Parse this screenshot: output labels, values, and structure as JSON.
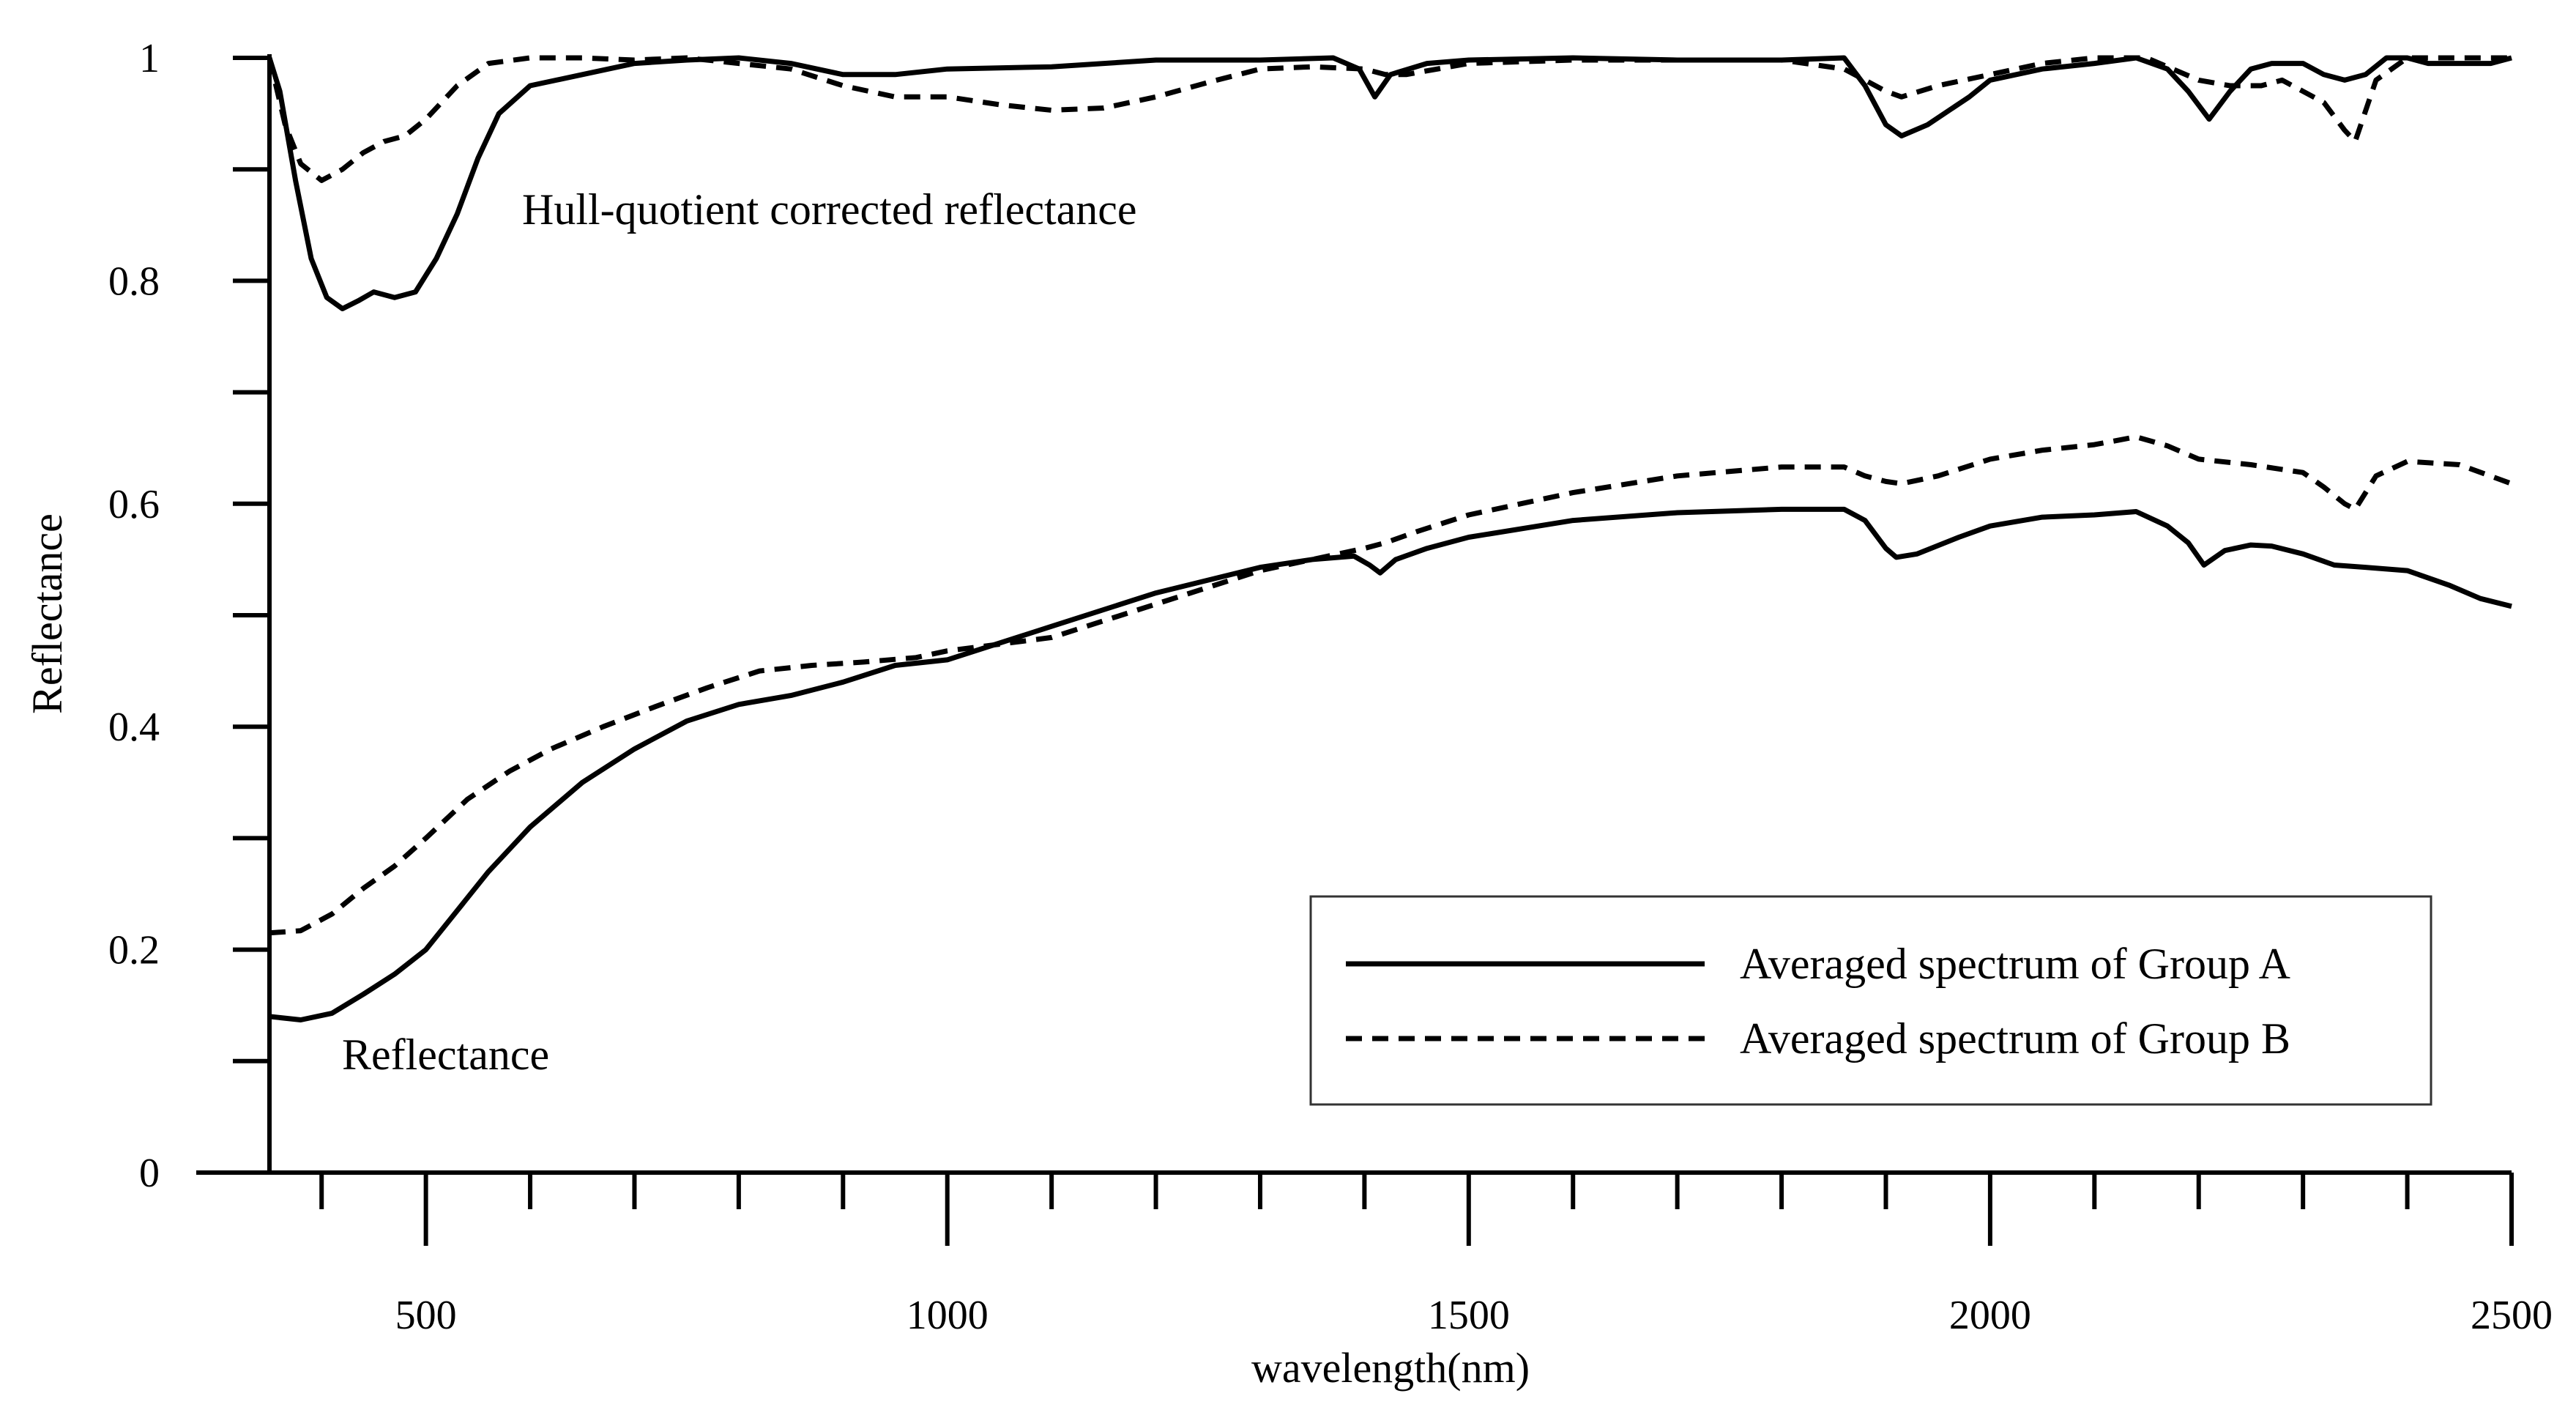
{
  "chart_data": {
    "type": "line",
    "title": "",
    "xlabel": "wavelength(nm)",
    "ylabel": "Reflectance",
    "xlim": [
      350,
      2500
    ],
    "ylim": [
      0,
      1
    ],
    "x_tick_labels": [
      "500",
      "1000",
      "1500",
      "2000",
      "2500"
    ],
    "y_tick_labels": [
      "0",
      "0.2",
      "0.4",
      "0.6",
      "0.8",
      "1"
    ],
    "x_major_ticks": [
      500,
      1000,
      1500,
      2000,
      2500
    ],
    "x_minor_ticks": [
      400,
      600,
      700,
      800,
      900,
      1100,
      1200,
      1300,
      1400,
      1600,
      1700,
      1800,
      1900,
      2100,
      2200,
      2300,
      2400
    ],
    "y_ticks": [
      0,
      0.1,
      0.2,
      0.3,
      0.4,
      0.5,
      0.6,
      0.7,
      0.8,
      0.9,
      1.0
    ],
    "annotations": [
      {
        "text": "Hull-quotient corrected reflectance",
        "x": 600,
        "y": 0.865
      },
      {
        "text": "Reflectance",
        "x": 420,
        "y": 0.1
      }
    ],
    "legend": {
      "placement": "bottom-right",
      "entries": [
        {
          "label": "Averaged spectrum of Group A",
          "style": "solid"
        },
        {
          "label": "Averaged spectrum of Group B",
          "style": "dashed"
        }
      ]
    },
    "series": [
      {
        "name": "Averaged spectrum of Group A",
        "curve": "Hull-quotient corrected reflectance",
        "style": "solid",
        "x": [
          350,
          360,
          375,
          390,
          405,
          420,
          435,
          450,
          470,
          490,
          510,
          530,
          550,
          570,
          600,
          650,
          700,
          750,
          800,
          850,
          900,
          950,
          1000,
          1100,
          1200,
          1300,
          1370,
          1395,
          1410,
          1425,
          1460,
          1500,
          1600,
          1700,
          1800,
          1860,
          1880,
          1900,
          1915,
          1940,
          1980,
          2000,
          2050,
          2100,
          2140,
          2170,
          2190,
          2210,
          2230,
          2250,
          2270,
          2300,
          2320,
          2340,
          2360,
          2380,
          2400,
          2420,
          2450,
          2480,
          2500
        ],
        "y": [
          1.0,
          0.97,
          0.89,
          0.82,
          0.785,
          0.775,
          0.782,
          0.79,
          0.785,
          0.79,
          0.82,
          0.86,
          0.91,
          0.95,
          0.975,
          0.985,
          0.995,
          0.998,
          1.0,
          0.995,
          0.985,
          0.985,
          0.99,
          0.992,
          0.998,
          0.998,
          1.0,
          0.99,
          0.965,
          0.985,
          0.995,
          0.998,
          1.0,
          0.998,
          0.998,
          1.0,
          0.975,
          0.94,
          0.93,
          0.94,
          0.965,
          0.98,
          0.99,
          0.995,
          1.0,
          0.99,
          0.97,
          0.945,
          0.97,
          0.99,
          0.995,
          0.995,
          0.985,
          0.98,
          0.985,
          1.0,
          1.0,
          0.995,
          0.995,
          0.995,
          1.0
        ]
      },
      {
        "name": "Averaged spectrum of Group B",
        "curve": "Hull-quotient corrected reflectance",
        "style": "dashed",
        "x": [
          350,
          365,
          380,
          400,
          420,
          440,
          460,
          480,
          500,
          530,
          560,
          600,
          650,
          700,
          750,
          800,
          850,
          900,
          950,
          1000,
          1050,
          1100,
          1150,
          1200,
          1250,
          1300,
          1350,
          1400,
          1420,
          1440,
          1500,
          1600,
          1700,
          1800,
          1860,
          1880,
          1900,
          1915,
          1950,
          2000,
          2050,
          2100,
          2150,
          2200,
          2230,
          2260,
          2280,
          2300,
          2320,
          2340,
          2350,
          2370,
          2400,
          2450,
          2500
        ],
        "y": [
          1.0,
          0.94,
          0.905,
          0.89,
          0.9,
          0.915,
          0.925,
          0.93,
          0.945,
          0.975,
          0.995,
          1.0,
          1.0,
          0.998,
          1.0,
          0.995,
          0.99,
          0.975,
          0.965,
          0.965,
          0.958,
          0.953,
          0.955,
          0.965,
          0.978,
          0.99,
          0.992,
          0.99,
          0.985,
          0.985,
          0.995,
          0.998,
          0.998,
          0.998,
          0.99,
          0.98,
          0.97,
          0.965,
          0.975,
          0.985,
          0.995,
          1.0,
          1.0,
          0.98,
          0.975,
          0.975,
          0.98,
          0.97,
          0.96,
          0.935,
          0.925,
          0.98,
          1.0,
          1.0,
          1.0
        ]
      },
      {
        "name": "Averaged spectrum of Group A",
        "curve": "Reflectance",
        "style": "solid",
        "x": [
          350,
          380,
          410,
          440,
          470,
          500,
          530,
          560,
          600,
          650,
          700,
          750,
          800,
          850,
          900,
          950,
          1000,
          1100,
          1200,
          1300,
          1350,
          1390,
          1405,
          1415,
          1430,
          1460,
          1500,
          1600,
          1700,
          1800,
          1860,
          1880,
          1900,
          1910,
          1930,
          1970,
          2000,
          2050,
          2100,
          2140,
          2170,
          2190,
          2205,
          2225,
          2250,
          2270,
          2300,
          2330,
          2360,
          2400,
          2440,
          2470,
          2500
        ],
        "y": [
          0.14,
          0.137,
          0.143,
          0.16,
          0.178,
          0.2,
          0.235,
          0.27,
          0.31,
          0.35,
          0.38,
          0.405,
          0.42,
          0.428,
          0.44,
          0.455,
          0.46,
          0.49,
          0.52,
          0.543,
          0.55,
          0.553,
          0.545,
          0.538,
          0.55,
          0.56,
          0.57,
          0.585,
          0.592,
          0.595,
          0.595,
          0.585,
          0.56,
          0.552,
          0.555,
          0.57,
          0.58,
          0.588,
          0.59,
          0.593,
          0.58,
          0.565,
          0.545,
          0.558,
          0.563,
          0.562,
          0.555,
          0.545,
          0.543,
          0.54,
          0.527,
          0.515,
          0.508
        ]
      },
      {
        "name": "Averaged spectrum of Group B",
        "curve": "Reflectance",
        "style": "dashed",
        "x": [
          350,
          380,
          410,
          440,
          470,
          500,
          540,
          580,
          620,
          670,
          720,
          770,
          820,
          870,
          920,
          970,
          1000,
          1100,
          1200,
          1300,
          1350,
          1400,
          1420,
          1450,
          1500,
          1600,
          1700,
          1800,
          1860,
          1880,
          1900,
          1915,
          1950,
          2000,
          2050,
          2100,
          2140,
          2170,
          2200,
          2250,
          2300,
          2320,
          2340,
          2350,
          2370,
          2400,
          2450,
          2500
        ],
        "y": [
          0.215,
          0.217,
          0.232,
          0.255,
          0.275,
          0.3,
          0.335,
          0.36,
          0.38,
          0.4,
          0.418,
          0.435,
          0.45,
          0.455,
          0.458,
          0.462,
          0.468,
          0.48,
          0.51,
          0.54,
          0.55,
          0.56,
          0.565,
          0.575,
          0.59,
          0.61,
          0.625,
          0.633,
          0.633,
          0.625,
          0.62,
          0.618,
          0.625,
          0.64,
          0.648,
          0.653,
          0.66,
          0.652,
          0.64,
          0.635,
          0.628,
          0.615,
          0.6,
          0.595,
          0.625,
          0.638,
          0.635,
          0.618
        ]
      }
    ]
  }
}
